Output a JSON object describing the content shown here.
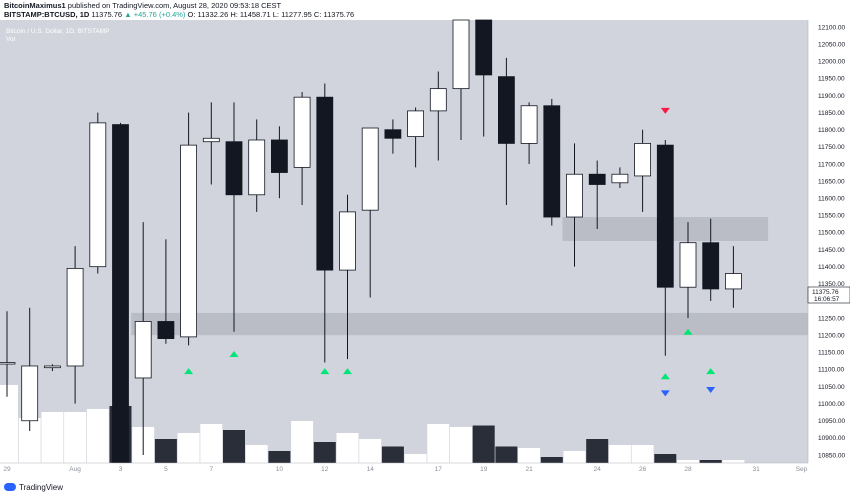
{
  "header": {
    "author": "BitcoinMaximus1",
    "published_text": "published on TradingView.com, August 28, 2020 09:53:18 CEST",
    "symbol": "BITSTAMP:BTCUSD, 1D",
    "last": "11375.76",
    "change": "▲ +45.76 (+0.4%)",
    "o": "O: 11332.26",
    "h": "H: 11458.71",
    "l": "L: 11277.95",
    "c": "C: 11375.76"
  },
  "legend": {
    "title": "Bitcoin / U.S. Dollar, 1D, BITSTAMP",
    "volume_label": "Vol"
  },
  "price_tag": {
    "value": "11375.76",
    "countdown": "16:06:57"
  },
  "brand": {
    "name": "TradingView"
  },
  "colors": {
    "background": "#d1d4dc",
    "up_fill": "#ffffff",
    "down_fill": "#131722",
    "zone": "#b2b5be",
    "green_arrow": "#00e676",
    "red_arrow": "#ff1744",
    "blue_arrow": "#2962ff"
  },
  "chart_data": {
    "type": "candlestick",
    "y_axis": {
      "min": 10850,
      "max": 12100,
      "ticks": [
        12100,
        12050,
        12000,
        11950,
        11900,
        11850,
        11800,
        11750,
        11700,
        11650,
        11600,
        11550,
        11500,
        11450,
        11400,
        11350,
        11300,
        11250,
        11200,
        11150,
        11100,
        11050,
        11000,
        10950,
        10900,
        10850
      ]
    },
    "x_axis": {
      "labels": [
        "29",
        "Aug",
        "3",
        "5",
        "7",
        "10",
        "12",
        "14",
        "17",
        "19",
        "21",
        "24",
        "26",
        "28",
        "31",
        "Sep"
      ],
      "label_index": [
        0,
        3,
        5,
        7,
        9,
        12,
        14,
        16,
        19,
        21,
        23,
        26,
        28,
        30,
        33,
        35
      ]
    },
    "candles": [
      {
        "o": 11120,
        "h": 11270,
        "l": 11020,
        "c": 11120
      },
      {
        "o": 10950,
        "h": 11280,
        "l": 10920,
        "c": 11110
      },
      {
        "o": 11105,
        "h": 11115,
        "l": 11095,
        "c": 11110
      },
      {
        "o": 11110,
        "h": 11460,
        "l": 11000,
        "c": 11395
      },
      {
        "o": 11400,
        "h": 11850,
        "l": 11380,
        "c": 11820
      },
      {
        "o": 11815,
        "h": 11820,
        "l": 10580,
        "c": 10810
      },
      {
        "o": 11075,
        "h": 11530,
        "l": 10850,
        "c": 11240
      },
      {
        "o": 11240,
        "h": 11480,
        "l": 11175,
        "c": 11190
      },
      {
        "o": 11195,
        "h": 11850,
        "l": 11170,
        "c": 11755
      },
      {
        "o": 11765,
        "h": 11880,
        "l": 11640,
        "c": 11775
      },
      {
        "o": 11765,
        "h": 11880,
        "l": 11210,
        "c": 11610
      },
      {
        "o": 11610,
        "h": 11830,
        "l": 11560,
        "c": 11770
      },
      {
        "o": 11770,
        "h": 11810,
        "l": 11600,
        "c": 11675
      },
      {
        "o": 11690,
        "h": 11910,
        "l": 11580,
        "c": 11895
      },
      {
        "o": 11895,
        "h": 11935,
        "l": 11120,
        "c": 11390
      },
      {
        "o": 11390,
        "h": 11610,
        "l": 11130,
        "c": 11560
      },
      {
        "o": 11565,
        "h": 11800,
        "l": 11310,
        "c": 11805
      },
      {
        "o": 11800,
        "h": 11830,
        "l": 11730,
        "c": 11775
      },
      {
        "o": 11780,
        "h": 11865,
        "l": 11690,
        "c": 11855
      },
      {
        "o": 11855,
        "h": 11970,
        "l": 11710,
        "c": 11920
      },
      {
        "o": 11920,
        "h": 12500,
        "l": 11770,
        "c": 12450
      },
      {
        "o": 12470,
        "h": 12500,
        "l": 11780,
        "c": 11960
      },
      {
        "o": 11955,
        "h": 12010,
        "l": 11580,
        "c": 11760
      },
      {
        "o": 11760,
        "h": 11880,
        "l": 11700,
        "c": 11870
      },
      {
        "o": 11870,
        "h": 11890,
        "l": 11520,
        "c": 11545
      },
      {
        "o": 11545,
        "h": 11760,
        "l": 11400,
        "c": 11670
      },
      {
        "o": 11670,
        "h": 11710,
        "l": 11510,
        "c": 11640
      },
      {
        "o": 11645,
        "h": 11690,
        "l": 11630,
        "c": 11670
      },
      {
        "o": 11665,
        "h": 11800,
        "l": 11560,
        "c": 11760
      },
      {
        "o": 11755,
        "h": 11770,
        "l": 11140,
        "c": 11340
      },
      {
        "o": 11340,
        "h": 11530,
        "l": 11250,
        "c": 11470
      },
      {
        "o": 11470,
        "h": 11540,
        "l": 11300,
        "c": 11335
      },
      {
        "o": 11335,
        "h": 11460,
        "l": 11280,
        "c": 11380
      }
    ],
    "volume_relative": [
      0.52,
      0.3,
      0.34,
      0.34,
      0.36,
      0.38,
      0.24,
      0.16,
      0.2,
      0.26,
      0.22,
      0.12,
      0.08,
      0.28,
      0.14,
      0.2,
      0.16,
      0.11,
      0.06,
      0.26,
      0.24,
      0.25,
      0.11,
      0.1,
      0.04,
      0.08,
      0.16,
      0.12,
      0.12,
      0.06,
      0.02,
      0.02,
      0.02
    ],
    "support_zones": [
      {
        "from": 11200,
        "to": 11265,
        "start_index": 6,
        "end_index": 37
      },
      {
        "from": 11475,
        "to": 11545,
        "start_index": 25,
        "end_index": 33
      }
    ],
    "markers": [
      {
        "index": 8,
        "price": 11095,
        "color": "green",
        "dir": "up"
      },
      {
        "index": 10,
        "price": 11145,
        "color": "green",
        "dir": "up"
      },
      {
        "index": 14,
        "price": 11095,
        "color": "green",
        "dir": "up"
      },
      {
        "index": 15,
        "price": 11095,
        "color": "green",
        "dir": "up"
      },
      {
        "index": 29,
        "price": 11080,
        "color": "green",
        "dir": "up"
      },
      {
        "index": 30,
        "price": 11210,
        "color": "green",
        "dir": "up"
      },
      {
        "index": 31,
        "price": 11095,
        "color": "green",
        "dir": "up"
      },
      {
        "index": 29,
        "price": 11030,
        "color": "blue",
        "dir": "down"
      },
      {
        "index": 31,
        "price": 11040,
        "color": "blue",
        "dir": "down"
      },
      {
        "index": 29,
        "price": 11855,
        "color": "red",
        "dir": "down"
      }
    ]
  }
}
